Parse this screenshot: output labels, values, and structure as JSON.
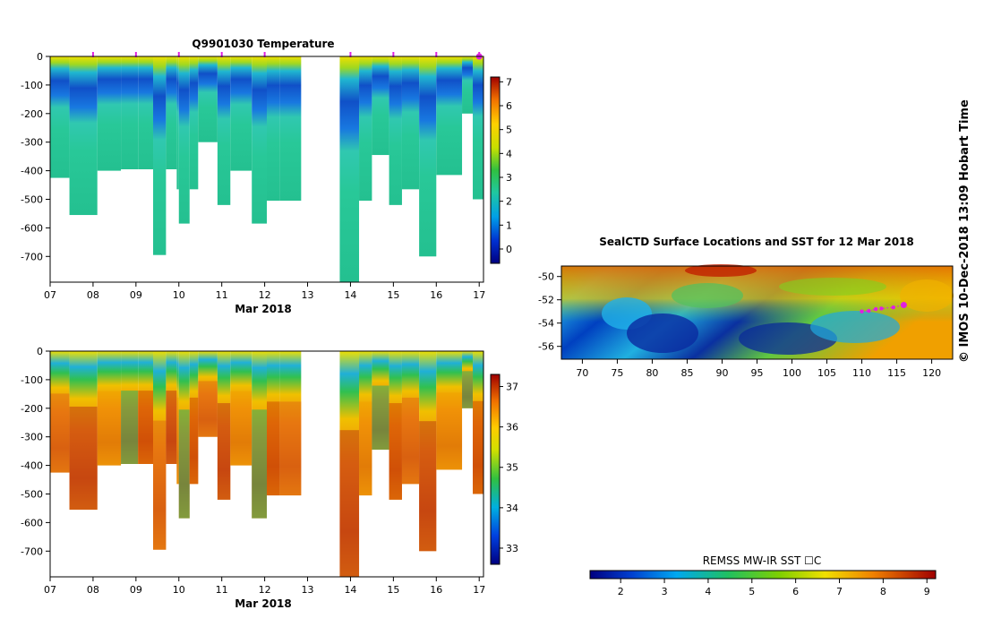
{
  "chart_data": [
    {
      "type": "heatmap",
      "title": "Q9901030  Temperature",
      "xlabel": "Mar 2018",
      "x_ticks": [
        "07",
        "08",
        "09",
        "10",
        "11",
        "12",
        "13",
        "14",
        "15",
        "16",
        "17"
      ],
      "xlim": [
        7,
        17.1
      ],
      "y_ticks": [
        "0",
        "-100",
        "-200",
        "-300",
        "-400",
        "-500",
        "-600",
        "-700"
      ],
      "ylim": [
        -790,
        0
      ],
      "colorbar": {
        "ticks": [
          "0",
          "1",
          "2",
          "3",
          "4",
          "5",
          "6",
          "7"
        ],
        "range": [
          -0.6,
          7.2
        ]
      },
      "profile_markers_day": [
        8.0,
        9.0,
        10.0,
        11.0,
        12.0,
        14.0,
        15.0,
        16.0,
        17.0
      ],
      "profiles": [
        {
          "x0": 7.0,
          "x1": 7.45,
          "max_depth": 425
        },
        {
          "x0": 7.45,
          "x1": 8.1,
          "max_depth": 555
        },
        {
          "x0": 8.1,
          "x1": 8.65,
          "max_depth": 400
        },
        {
          "x0": 8.65,
          "x1": 9.05,
          "max_depth": 395
        },
        {
          "x0": 9.05,
          "x1": 9.4,
          "max_depth": 395
        },
        {
          "x0": 9.4,
          "x1": 9.7,
          "max_depth": 695
        },
        {
          "x0": 9.7,
          "x1": 9.95,
          "max_depth": 395
        },
        {
          "x0": 9.95,
          "x1": 10.0,
          "max_depth": 465
        },
        {
          "x0": 10.0,
          "x1": 10.25,
          "max_depth": 585
        },
        {
          "x0": 10.25,
          "x1": 10.45,
          "max_depth": 465
        },
        {
          "x0": 10.45,
          "x1": 10.9,
          "max_depth": 300
        },
        {
          "x0": 10.9,
          "x1": 11.2,
          "max_depth": 520
        },
        {
          "x0": 11.2,
          "x1": 11.7,
          "max_depth": 400
        },
        {
          "x0": 11.7,
          "x1": 12.05,
          "max_depth": 585
        },
        {
          "x0": 12.05,
          "x1": 12.35,
          "max_depth": 505
        },
        {
          "x0": 12.35,
          "x1": 12.85,
          "max_depth": 505
        },
        {
          "x0": 13.75,
          "x1": 14.2,
          "max_depth": 790
        },
        {
          "x0": 14.2,
          "x1": 14.5,
          "max_depth": 505
        },
        {
          "x0": 14.5,
          "x1": 14.9,
          "max_depth": 345
        },
        {
          "x0": 14.9,
          "x1": 15.2,
          "max_depth": 520
        },
        {
          "x0": 15.2,
          "x1": 15.6,
          "max_depth": 465
        },
        {
          "x0": 15.6,
          "x1": 16.0,
          "max_depth": 700
        },
        {
          "x0": 16.0,
          "x1": 16.6,
          "max_depth": 415
        },
        {
          "x0": 16.6,
          "x1": 16.85,
          "max_depth": 200
        },
        {
          "x0": 16.85,
          "x1": 17.1,
          "max_depth": 500
        }
      ]
    },
    {
      "type": "heatmap",
      "title": "",
      "xlabel": "Mar 2018",
      "x_ticks": [
        "07",
        "08",
        "09",
        "10",
        "11",
        "12",
        "13",
        "14",
        "15",
        "16",
        "17"
      ],
      "xlim": [
        7,
        17.1
      ],
      "y_ticks": [
        "0",
        "-100",
        "-200",
        "-300",
        "-400",
        "-500",
        "-600",
        "-700"
      ],
      "ylim": [
        -790,
        0
      ],
      "colorbar": {
        "ticks": [
          "33",
          "34",
          "35",
          "36",
          "37"
        ],
        "range": [
          32.6,
          37.3
        ]
      }
    },
    {
      "type": "heatmap",
      "title": "SealCTD Surface Locations and SST for 12 Mar 2018",
      "x_ticks": [
        "70",
        "75",
        "80",
        "85",
        "90",
        "95",
        "100",
        "105",
        "110",
        "115",
        "120"
      ],
      "xlim": [
        67,
        123
      ],
      "y_ticks": [
        "-50",
        "-52",
        "-54",
        "-56"
      ],
      "ylim": [
        -57.1,
        -49.1
      ],
      "colorbar": {
        "title": "REMSS MW-IR SST ☐C",
        "ticks": [
          "2",
          "3",
          "4",
          "5",
          "6",
          "7",
          "8",
          "9"
        ],
        "range": [
          1.3,
          9.2
        ]
      },
      "track": [
        {
          "lon": 110.0,
          "lat": -53.0
        },
        {
          "lon": 111.0,
          "lat": -52.95
        },
        {
          "lon": 112.0,
          "lat": -52.8
        },
        {
          "lon": 112.8,
          "lat": -52.75
        },
        {
          "lon": 114.5,
          "lat": -52.65
        },
        {
          "lon": 116.0,
          "lat": -52.45
        }
      ]
    }
  ],
  "side_label": "©  IMOS 10-Dec-2018 13:09 Hobart Time"
}
